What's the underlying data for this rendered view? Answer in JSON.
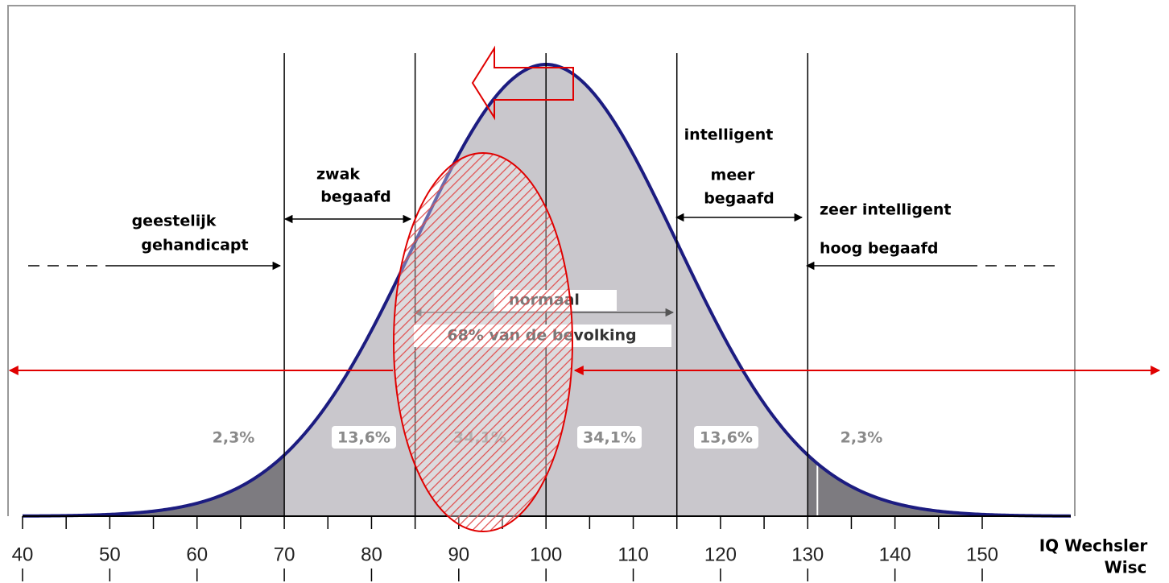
{
  "axis": {
    "ticks": [
      40,
      50,
      60,
      70,
      80,
      90,
      100,
      110,
      120,
      130,
      140,
      150
    ],
    "label": [
      "IQ Wechsler",
      "Wisc"
    ]
  },
  "boundaries": [
    70,
    85,
    100,
    115,
    130
  ],
  "percentages": [
    "2,3%",
    "13,6%",
    "34,1%",
    "34,1%",
    "13,6%",
    "2,3%"
  ],
  "labels": {
    "geestelijk": [
      "geestelijk",
      "gehandicapt"
    ],
    "zwak": [
      "zwak",
      "begaafd"
    ],
    "normaal": [
      "normaal",
      "68% van de bevolking"
    ],
    "meer": [
      "intelligent",
      "meer",
      "begaafd"
    ],
    "zeer": [
      "zeer intelligent",
      "hoog begaafd"
    ]
  }
}
